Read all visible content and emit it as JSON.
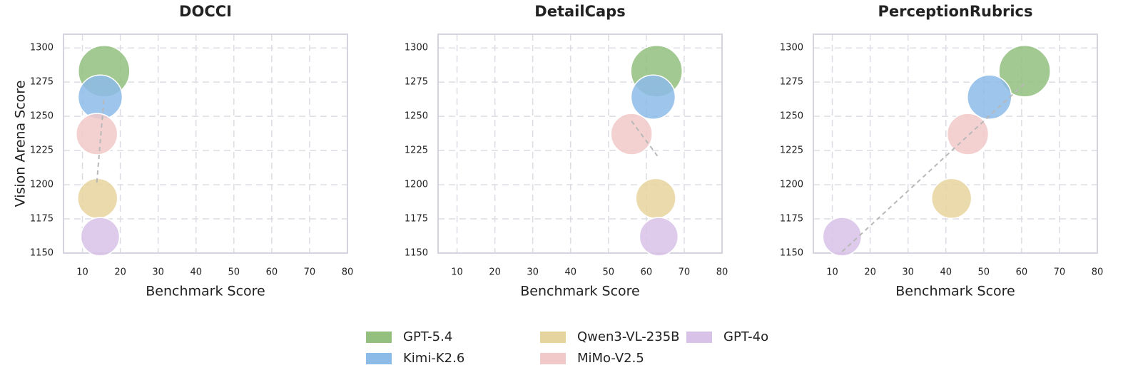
{
  "chart_data": [
    {
      "type": "scatter",
      "title": "DOCCI",
      "xlabel": "Benchmark Score",
      "ylabel": "Vision Arena Score",
      "xlim": [
        5,
        80
      ],
      "ylim": [
        1150,
        1310
      ],
      "xticks": [
        10,
        20,
        30,
        40,
        50,
        60,
        70,
        80
      ],
      "yticks": [
        1150,
        1175,
        1200,
        1225,
        1250,
        1275,
        1300
      ],
      "grid": true,
      "series": [
        {
          "name": "GPT-5.4",
          "color": "#93bf7f",
          "size": 1300,
          "x": [
            15.7
          ],
          "values": [
            1283
          ]
        },
        {
          "name": "Kimi-K2.6",
          "color": "#8dbbe8",
          "size": 960,
          "x": [
            14.7
          ],
          "values": [
            1264
          ]
        },
        {
          "name": "Qwen3-VL-235B",
          "color": "#e6d49e",
          "size": 780,
          "x": [
            14.0
          ],
          "values": [
            1190
          ]
        },
        {
          "name": "MiMo-V2.5",
          "color": "#f2c9c9",
          "size": 840,
          "x": [
            13.8
          ],
          "values": [
            1237
          ]
        },
        {
          "name": "GPT-4o",
          "color": "#d8c2e8",
          "size": 730,
          "x": [
            14.7
          ],
          "values": [
            1162
          ]
        }
      ]
    },
    {
      "type": "scatter",
      "title": "DetailCaps",
      "xlabel": "Benchmark Score",
      "xlim": [
        5,
        80
      ],
      "ylim": [
        1150,
        1310
      ],
      "xticks": [
        10,
        20,
        30,
        40,
        50,
        60,
        70,
        80
      ],
      "yticks": [
        1150,
        1175,
        1200,
        1225,
        1250,
        1275,
        1300
      ],
      "grid": true,
      "series": [
        {
          "x": [
            62.7
          ],
          "values": [
            1283
          ]
        },
        {
          "x": [
            61.8
          ],
          "values": [
            1264
          ]
        },
        {
          "x": [
            62.5
          ],
          "values": [
            1190
          ]
        },
        {
          "x": [
            56.1
          ],
          "values": [
            1237
          ]
        },
        {
          "x": [
            63.3
          ],
          "values": [
            1162
          ]
        }
      ]
    },
    {
      "type": "scatter",
      "title": "PerceptionRubrics",
      "xlabel": "Benchmark Score",
      "xlim": [
        5,
        80
      ],
      "ylim": [
        1150,
        1310
      ],
      "xticks": [
        10,
        20,
        30,
        40,
        50,
        60,
        70,
        80
      ],
      "yticks": [
        1150,
        1175,
        1200,
        1225,
        1250,
        1275,
        1300
      ],
      "grid": true,
      "series": [
        {
          "x": [
            60.8
          ],
          "values": [
            1283
          ]
        },
        {
          "x": [
            51.5
          ],
          "values": [
            1264
          ]
        },
        {
          "x": [
            41.5
          ],
          "values": [
            1190
          ]
        },
        {
          "x": [
            45.8
          ],
          "values": [
            1237
          ]
        },
        {
          "x": [
            12.6
          ],
          "values": [
            1162
          ]
        }
      ]
    }
  ]
}
